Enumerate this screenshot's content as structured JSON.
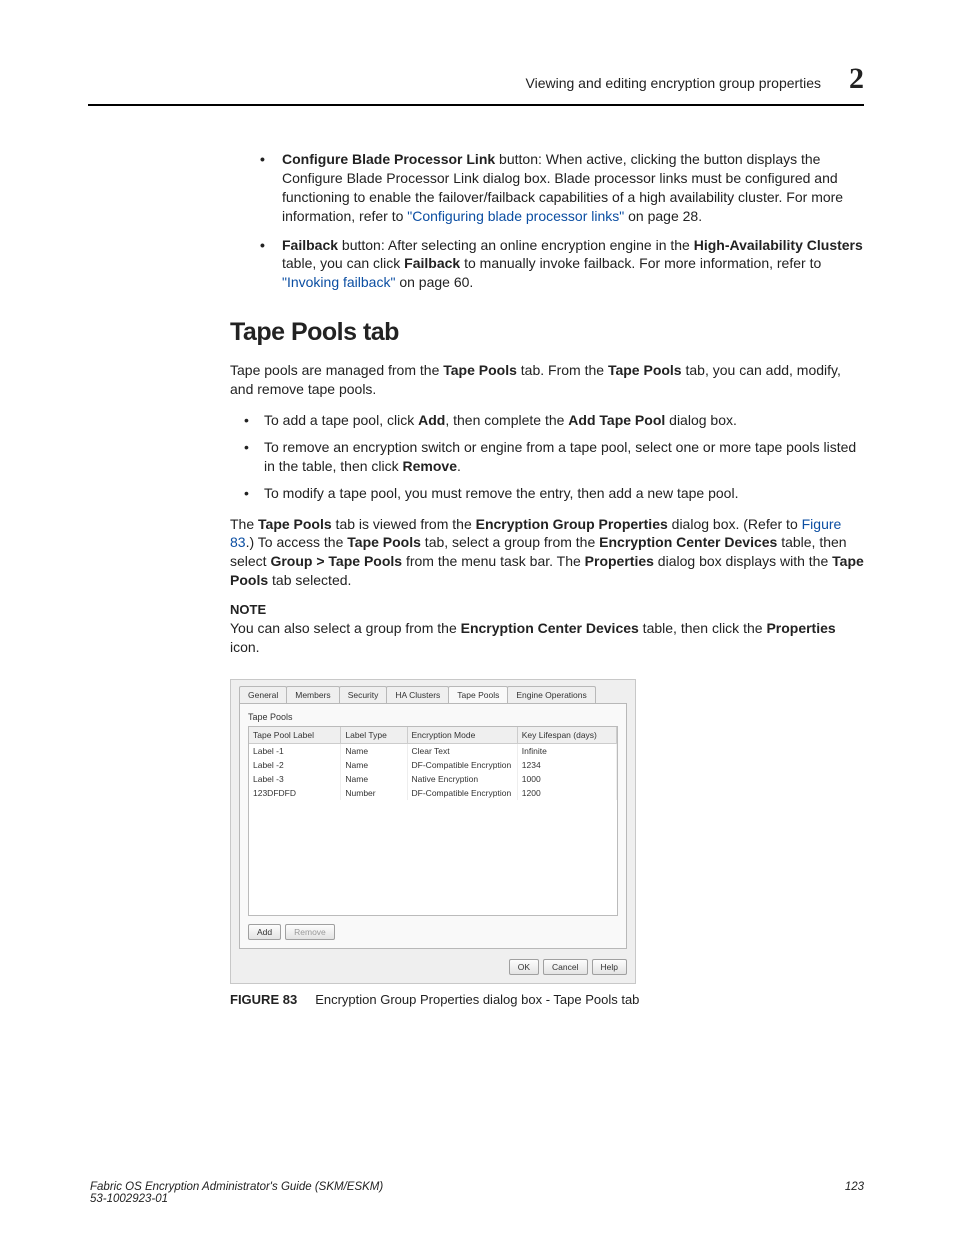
{
  "header": {
    "title": "Viewing and editing encryption group properties",
    "chapter": "2"
  },
  "top_bullets": [
    {
      "lead_bold": "Configure Blade Processor Link",
      "rest1": " button: When active, clicking the button displays the Configure Blade Processor Link dialog box. Blade processor links must be configured and functioning to enable the failover/failback capabilities of a high availability cluster. For more information, refer to ",
      "link": "\"Configuring blade processor links\"",
      "rest2": " on page 28."
    },
    {
      "lead_bold": "Failback",
      "rest1": " button: After selecting an online encryption engine in the ",
      "mid_bold1": "High-Availability Clusters",
      "rest2": " table, you can click ",
      "mid_bold2": "Failback",
      "rest3": " to manually invoke failback. For more information, refer to ",
      "link": "\"Invoking failback\"",
      "rest4": " on page 60."
    }
  ],
  "section_title": "Tape Pools tab",
  "intro": {
    "pre": "Tape pools are managed from the ",
    "b1": "Tape Pools",
    "mid1": " tab. From the ",
    "b2": "Tape Pools",
    "post": " tab, you can add, modify, and remove tape pools."
  },
  "body_bullets": [
    {
      "pre": "To add a tape pool, click ",
      "b1": "Add",
      "mid": ", then complete the ",
      "b2": "Add Tape Pool",
      "post": " dialog box."
    },
    {
      "pre": "To remove an encryption switch or engine from a tape pool, select one or more tape pools listed in the table, then click ",
      "b1": "Remove",
      "post": "."
    },
    {
      "pre": "To modify a tape pool, you must remove the entry, then add a new tape pool."
    }
  ],
  "para2": {
    "t1": "The ",
    "b1": "Tape Pools",
    "t2": " tab is viewed from the ",
    "b2": "Encryption Group Properties",
    "t3": " dialog box. (Refer to ",
    "link": "Figure 83",
    "t4": ".) To access the ",
    "b3": "Tape Pools",
    "t5": " tab, select a group from the ",
    "b4": "Encryption Center Devices",
    "t6": " table, then select ",
    "b5": "Group > Tape Pools",
    "t7": " from the menu task bar. The ",
    "b6": "Properties",
    "t8": " dialog box displays with the ",
    "b7": "Tape Pools",
    "t9": " tab selected."
  },
  "note_label": "NOTE",
  "note": {
    "t1": "You can also select a group from the ",
    "b1": "Encryption Center Devices",
    "t2": " table, then click the ",
    "b2": "Properties",
    "t3": " icon."
  },
  "dialog": {
    "tabs": [
      "General",
      "Members",
      "Security",
      "HA Clusters",
      "Tape Pools",
      "Engine Operations"
    ],
    "active_tab_index": 4,
    "panel_title": "Tape Pools",
    "columns": [
      "Tape Pool Label",
      "Label Type",
      "Encryption Mode",
      "Key Lifespan (days)"
    ],
    "rows": [
      [
        "Label -1",
        "Name",
        "Clear Text",
        "Infinite"
      ],
      [
        "Label -2",
        "Name",
        "DF-Compatible Encryption",
        "1234"
      ],
      [
        "Label -3",
        "Name",
        "Native Encryption",
        "1000"
      ],
      [
        "123DFDFD",
        "Number",
        "DF-Compatible Encryption",
        "1200"
      ]
    ],
    "add_btn": "Add",
    "remove_btn": "Remove",
    "ok_btn": "OK",
    "cancel_btn": "Cancel",
    "help_btn": "Help"
  },
  "figure": {
    "label": "FIGURE 83",
    "caption": "Encryption Group Properties dialog box - Tape Pools tab"
  },
  "footer": {
    "left1": "Fabric OS Encryption Administrator's Guide (SKM/ESKM)",
    "left2": "53-1002923-01",
    "page": "123"
  }
}
